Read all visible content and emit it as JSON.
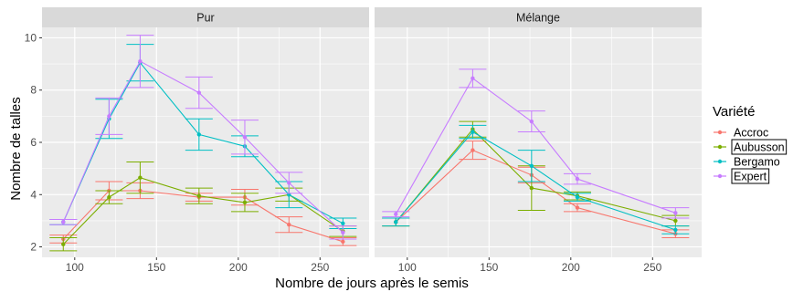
{
  "chart_data": {
    "type": "line",
    "xlabel": "Nombre de jours après le semis",
    "ylabel": "Nombre de talles",
    "xlim": [
      80,
      280
    ],
    "ylim": [
      1.6,
      10.4
    ],
    "x_ticks": [
      100,
      150,
      200,
      250
    ],
    "y_ticks": [
      2,
      4,
      6,
      8,
      10
    ],
    "grid": true,
    "legend": {
      "title": "Variété",
      "placement": "right",
      "entries": [
        {
          "name": "Accroc",
          "color": "#F8766D",
          "boxed": false
        },
        {
          "name": "Aubusson",
          "color": "#7CAE00",
          "boxed": true
        },
        {
          "name": "Bergamo",
          "color": "#00BFC4",
          "boxed": false
        },
        {
          "name": "Expert",
          "color": "#C77CFF",
          "boxed": true
        }
      ]
    },
    "panels": [
      {
        "strip": "Pur",
        "series": [
          {
            "name": "Accroc",
            "x": [
              93,
              121,
              140,
              176,
              204,
              231,
              264
            ],
            "y": [
              2.3,
              4.15,
              4.15,
              3.9,
              3.9,
              2.85,
              2.2
            ],
            "err": [
              0.15,
              0.35,
              0.3,
              0.15,
              0.3,
              0.3,
              0.15
            ]
          },
          {
            "name": "Aubusson",
            "x": [
              93,
              121,
              140,
              176,
              204,
              231,
              264
            ],
            "y": [
              2.1,
              3.9,
              4.65,
              3.95,
              3.7,
              4.0,
              2.6
            ],
            "err": [
              0.25,
              0.25,
              0.6,
              0.3,
              0.35,
              0.25,
              0.2
            ]
          },
          {
            "name": "Bergamo",
            "x": [
              93,
              121,
              140,
              176,
              204,
              231,
              264
            ],
            "y": [
              2.95,
              6.9,
              9.05,
              6.3,
              5.85,
              4.0,
              2.9
            ],
            "err": [
              0.1,
              0.75,
              0.7,
              0.6,
              0.4,
              0.5,
              0.2
            ]
          },
          {
            "name": "Expert",
            "x": [
              93,
              121,
              140,
              176,
              204,
              231,
              264
            ],
            "y": [
              2.95,
              7.0,
              9.1,
              7.9,
              6.2,
              4.45,
              2.55
            ],
            "err": [
              0.1,
              0.7,
              1.0,
              0.6,
              0.65,
              0.4,
              0.25
            ]
          }
        ]
      },
      {
        "strip": "Mélange",
        "series": [
          {
            "name": "Accroc",
            "x": [
              93,
              140,
              176,
              204,
              264
            ],
            "y": [
              2.95,
              5.7,
              4.75,
              3.5,
              2.5
            ],
            "err": [
              0.15,
              0.35,
              0.3,
              0.15,
              0.15
            ]
          },
          {
            "name": "Aubusson",
            "x": [
              93,
              140,
              176,
              204,
              264
            ],
            "y": [
              2.95,
              6.5,
              4.25,
              3.95,
              3.0
            ],
            "err": [
              0.15,
              0.3,
              0.85,
              0.15,
              0.2
            ]
          },
          {
            "name": "Bergamo",
            "x": [
              93,
              140,
              176,
              204,
              264
            ],
            "y": [
              2.95,
              6.4,
              5.1,
              3.9,
              2.65
            ],
            "err": [
              0.15,
              0.25,
              0.6,
              0.15,
              0.15
            ]
          },
          {
            "name": "Expert",
            "x": [
              93,
              140,
              176,
              204,
              264
            ],
            "y": [
              3.25,
              8.45,
              6.8,
              4.6,
              3.3
            ],
            "err": [
              0.1,
              0.35,
              0.4,
              0.2,
              0.2
            ]
          }
        ]
      }
    ]
  }
}
